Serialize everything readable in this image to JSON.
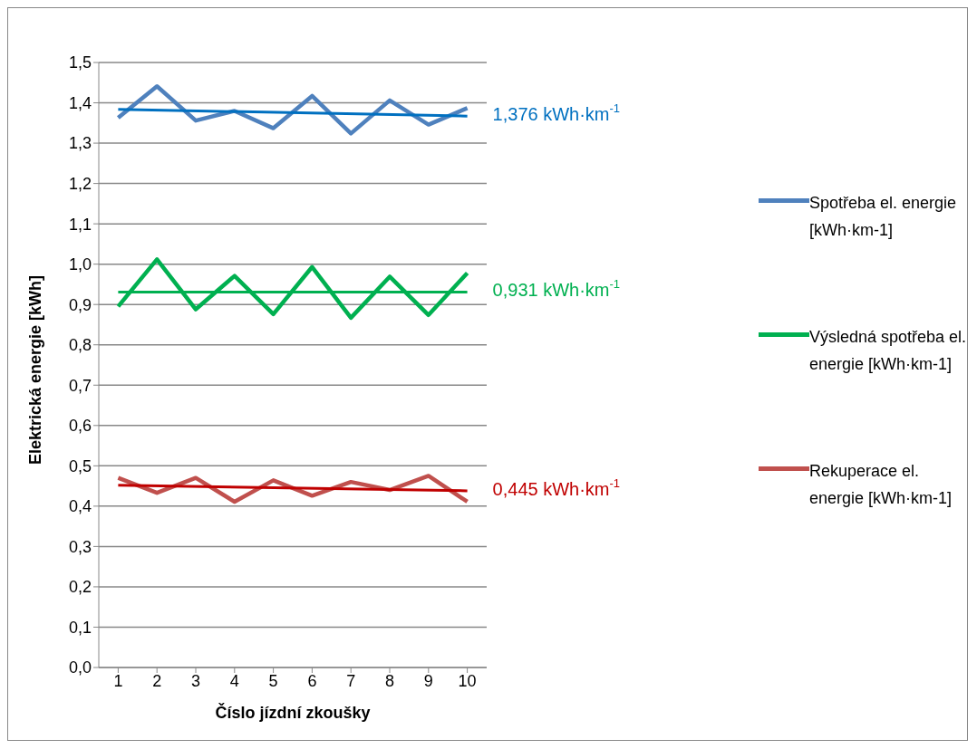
{
  "chart_data": {
    "type": "line",
    "xlabel": "Číslo jízdní zkoušky",
    "ylabel": "Elektrická energie [kWh]",
    "categories": [
      "1",
      "2",
      "3",
      "4",
      "5",
      "6",
      "7",
      "8",
      "9",
      "10"
    ],
    "series": [
      {
        "name": "Spotřeba el. energie [kWh·km-1]",
        "color": "#4f81bd",
        "values": [
          1.363,
          1.441,
          1.356,
          1.38,
          1.337,
          1.417,
          1.324,
          1.406,
          1.346,
          1.387
        ]
      },
      {
        "type": "line",
        "color": "#0070c0",
        "x": [
          "1",
          "10"
        ],
        "values": [
          1.384,
          1.367
        ]
      },
      {
        "name": "Výsledná spotřeba el. energie [kWh·km-1]",
        "color": "#00b050",
        "values": [
          0.895,
          1.012,
          0.888,
          0.971,
          0.876,
          0.993,
          0.867,
          0.969,
          0.874,
          0.978
        ]
      },
      {
        "type": "line",
        "color": "#00b050",
        "x": [
          "1",
          "10"
        ],
        "values": [
          0.931,
          0.931
        ]
      },
      {
        "name": "Rekuperace el. energie [kWh·km-1]",
        "color": "#c0504d",
        "values": [
          0.47,
          0.433,
          0.47,
          0.411,
          0.464,
          0.426,
          0.46,
          0.44,
          0.475,
          0.411
        ]
      },
      {
        "type": "line",
        "color": "#c00000",
        "x": [
          "1",
          "10"
        ],
        "values": [
          0.452,
          0.438
        ]
      }
    ],
    "ylim": [
      0,
      1.5
    ],
    "yticks": [
      {
        "value": 0,
        "label": "0,0"
      },
      {
        "value": 0.1,
        "label": "0,1"
      },
      {
        "value": 0.2,
        "label": "0,2"
      },
      {
        "value": 0.3,
        "label": "0,3"
      },
      {
        "value": 0.4,
        "label": "0,4"
      },
      {
        "value": 0.5,
        "label": "0,5"
      },
      {
        "value": 0.6,
        "label": "0,6"
      },
      {
        "value": 0.7,
        "label": "0,7"
      },
      {
        "value": 0.8,
        "label": "0,8"
      },
      {
        "value": 0.9,
        "label": "0,9"
      },
      {
        "value": 1.0,
        "label": "1,0"
      },
      {
        "value": 1.1,
        "label": "1,1"
      },
      {
        "value": 1.2,
        "label": "1,2"
      },
      {
        "value": 1.3,
        "label": "1,3"
      },
      {
        "value": 1.4,
        "label": "1,4"
      },
      {
        "value": 1.5,
        "label": "1,5"
      }
    ],
    "annotations": [
      {
        "text": "1,376 kWh·km$^{-1}$",
        "x": "10",
        "y": 1.367
      },
      {
        "text": "0,931 kWh·km$^{-1}$",
        "x": "10",
        "y": 0.931
      },
      {
        "text": "0,445 kWh·km$^{-1}$",
        "x": "10",
        "y": 0.438
      }
    ],
    "grid": "y",
    "legend": "right",
    "marker": "none",
    "line_style": "solid"
  }
}
